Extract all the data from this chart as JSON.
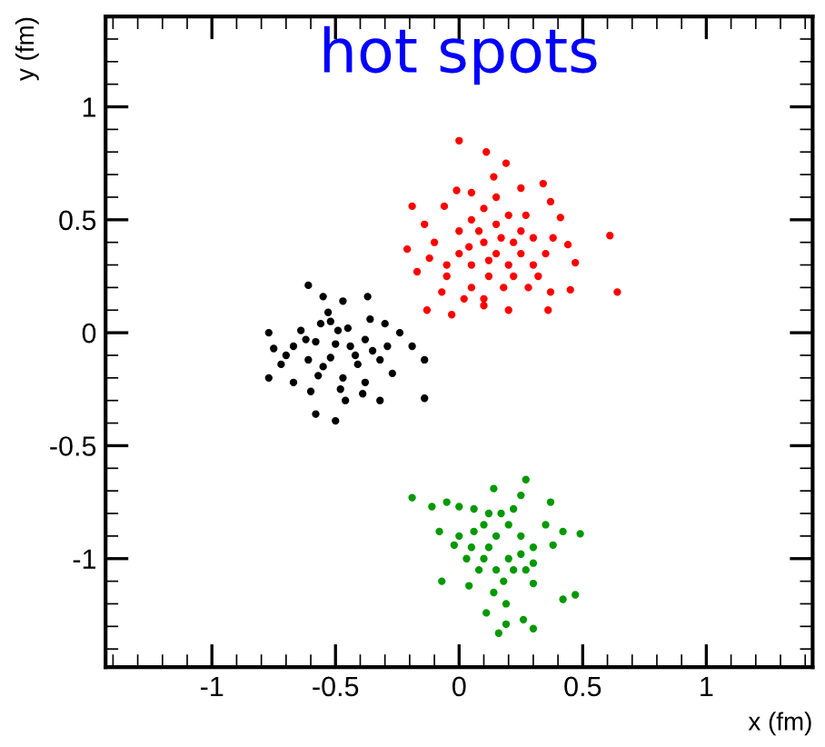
{
  "chart_data": {
    "type": "scatter",
    "title": "hot spots",
    "xlabel": "x (fm)",
    "ylabel": "y (fm)",
    "xlim": [
      -1.43,
      1.43
    ],
    "ylim": [
      -1.48,
      1.4
    ],
    "xticks": [
      -1,
      -0.5,
      0,
      0.5,
      1
    ],
    "yticks": [
      -1,
      -0.5,
      0,
      0.5,
      1
    ],
    "grid": false,
    "marker": "circle",
    "series": [
      {
        "color": "#000000",
        "x": [
          -0.61,
          -0.55,
          -0.47,
          -0.37,
          -0.53,
          -0.36,
          -0.77,
          -0.64,
          -0.56,
          -0.49,
          -0.3,
          -0.24,
          -0.75,
          -0.67,
          -0.58,
          -0.44,
          -0.38,
          -0.29,
          -0.19,
          -0.72,
          -0.61,
          -0.52,
          -0.41,
          -0.32,
          -0.14,
          -0.77,
          -0.67,
          -0.57,
          -0.47,
          -0.38,
          -0.6,
          -0.46,
          -0.39,
          -0.32,
          -0.14,
          -0.58,
          -0.5,
          -0.5,
          -0.45,
          -0.42,
          -0.55,
          -0.35,
          -0.62,
          -0.48,
          -0.27,
          -0.7,
          -0.52
        ],
        "values": [
          0.21,
          0.16,
          0.14,
          0.16,
          0.09,
          0.06,
          0.0,
          0.01,
          0.04,
          0.01,
          0.04,
          0.0,
          -0.07,
          -0.06,
          -0.04,
          -0.06,
          -0.03,
          -0.06,
          -0.06,
          -0.14,
          -0.12,
          -0.11,
          -0.14,
          -0.12,
          -0.12,
          -0.2,
          -0.22,
          -0.19,
          -0.2,
          -0.22,
          -0.26,
          -0.3,
          -0.27,
          -0.3,
          -0.29,
          -0.36,
          -0.39,
          -0.05,
          0.02,
          -0.1,
          -0.15,
          -0.08,
          -0.03,
          -0.25,
          -0.18,
          -0.1,
          0.05
        ]
      },
      {
        "color": "#ff0000",
        "x": [
          0.0,
          0.11,
          0.19,
          0.14,
          0.34,
          -0.01,
          -0.19,
          -0.06,
          0.25,
          0.37,
          -0.14,
          0.41,
          0.61,
          -0.21,
          0.44,
          0.47,
          0.64,
          -0.17,
          -0.13,
          -0.03,
          0.1,
          0.2,
          0.36,
          0.45,
          0.37,
          -0.07,
          0.0,
          0.05,
          0.1,
          0.15,
          0.2,
          0.25,
          0.3,
          0.0,
          0.05,
          0.1,
          0.15,
          0.2,
          0.25,
          0.3,
          0.35,
          -0.05,
          0.05,
          0.12,
          0.18,
          0.22,
          0.28,
          0.32,
          -0.1,
          -0.05,
          0.08,
          0.17,
          0.22,
          0.12,
          0.04,
          0.27,
          0.1,
          0.02,
          0.38,
          -0.12,
          0.15,
          0.05
        ],
        "values": [
          0.85,
          0.8,
          0.75,
          0.69,
          0.66,
          0.63,
          0.56,
          0.56,
          0.64,
          0.58,
          0.48,
          0.51,
          0.43,
          0.37,
          0.39,
          0.31,
          0.18,
          0.27,
          0.1,
          0.08,
          0.12,
          0.1,
          0.1,
          0.19,
          0.18,
          0.18,
          0.45,
          0.5,
          0.55,
          0.48,
          0.52,
          0.45,
          0.42,
          0.35,
          0.3,
          0.4,
          0.35,
          0.3,
          0.35,
          0.3,
          0.35,
          0.25,
          0.2,
          0.25,
          0.2,
          0.25,
          0.2,
          0.25,
          0.4,
          0.3,
          0.45,
          0.42,
          0.4,
          0.32,
          0.38,
          0.52,
          0.15,
          0.15,
          0.42,
          0.33,
          0.6,
          0.62
        ]
      },
      {
        "color": "#009900",
        "x": [
          -0.19,
          -0.11,
          -0.05,
          0.0,
          0.06,
          0.14,
          0.27,
          0.25,
          0.37,
          -0.08,
          0.42,
          0.49,
          -0.02,
          0.38,
          -0.07,
          0.04,
          0.3,
          0.42,
          0.47,
          0.11,
          0.19,
          0.19,
          0.26,
          0.3,
          0.16,
          0.1,
          0.15,
          0.2,
          0.25,
          0.05,
          0.1,
          0.15,
          0.2,
          0.25,
          0.3,
          0.08,
          0.12,
          0.18,
          0.22,
          0.03,
          0.3,
          0.17,
          0.22,
          0.12,
          0.35,
          0.0,
          0.27,
          0.14,
          0.06
        ],
        "values": [
          -0.73,
          -0.77,
          -0.75,
          -0.77,
          -0.78,
          -0.69,
          -0.65,
          -0.72,
          -0.75,
          -0.88,
          -0.88,
          -0.89,
          -0.94,
          -0.94,
          -1.1,
          -1.12,
          -1.11,
          -1.18,
          -1.16,
          -1.24,
          -1.2,
          -1.29,
          -1.27,
          -1.31,
          -1.33,
          -0.85,
          -0.9,
          -0.85,
          -0.9,
          -0.95,
          -1.0,
          -1.05,
          -1.0,
          -0.98,
          -0.95,
          -1.05,
          -0.95,
          -1.1,
          -1.05,
          -1.0,
          -1.02,
          -0.8,
          -0.78,
          -0.8,
          -0.85,
          -0.9,
          -1.05,
          -1.15,
          -0.88
        ]
      }
    ]
  }
}
